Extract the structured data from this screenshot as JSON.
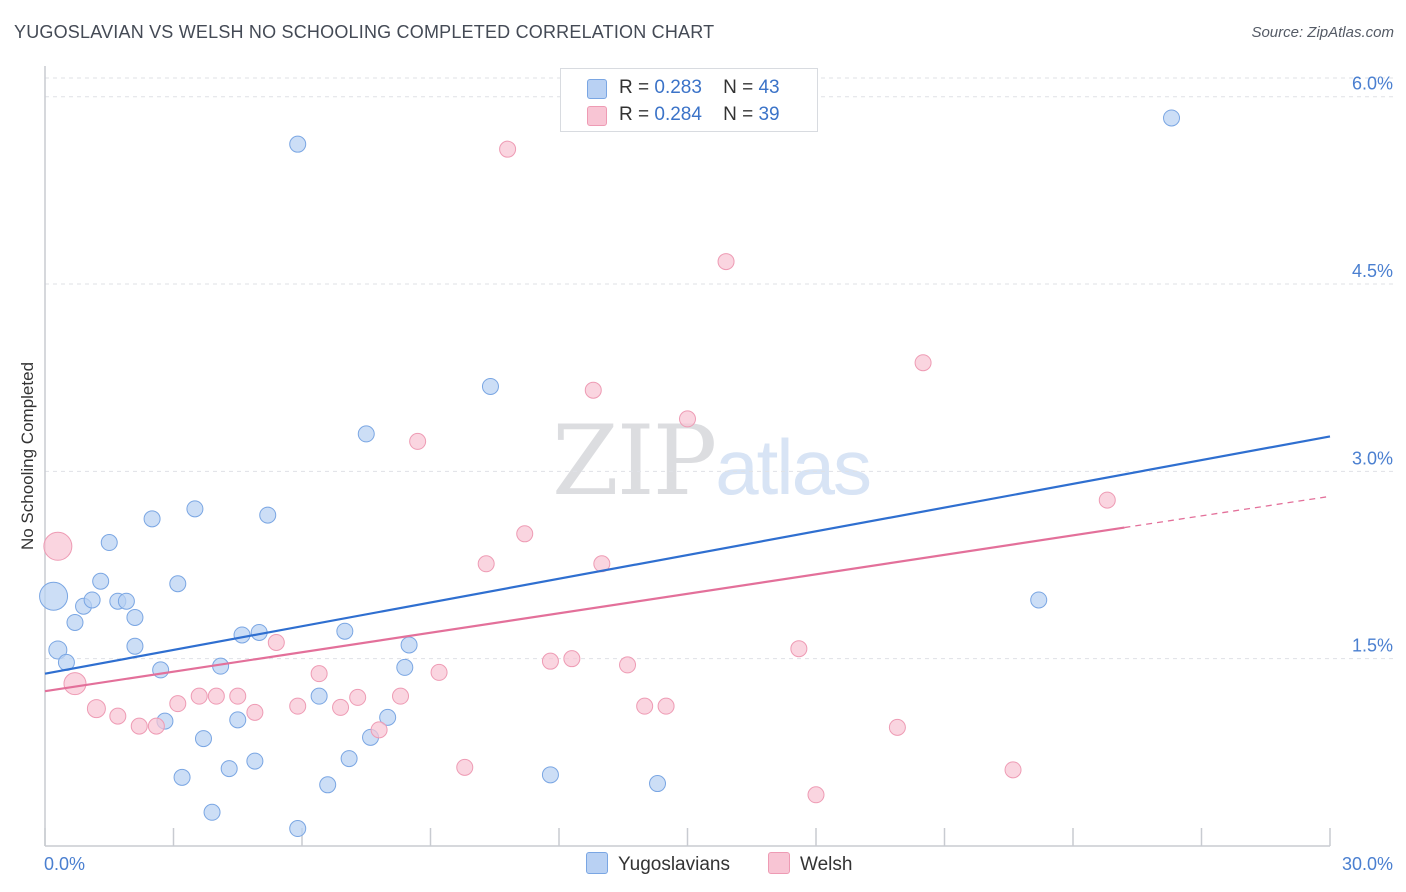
{
  "title": "YUGOSLAVIAN VS WELSH NO SCHOOLING COMPLETED CORRELATION CHART",
  "source": "Source: ZipAtlas.com",
  "watermark": {
    "zip": "ZIP",
    "atlas": "atlas"
  },
  "legend_top": [
    {
      "r_label": "R =",
      "r_value": "0.283",
      "n_label": "N =",
      "n_value": "43"
    },
    {
      "r_label": "R =",
      "r_value": "0.284",
      "n_label": "N =",
      "n_value": "39"
    }
  ],
  "legend_bottom": [
    "Yugoslavians",
    "Welsh"
  ],
  "colors": {
    "yugoslavian_fill": "#b9d1f3",
    "yugoslavian_stroke": "#7aa6e3",
    "yugoslavian_line": "#2f6fd0",
    "welsh_fill": "#f8c5d4",
    "welsh_stroke": "#ee9bb4",
    "welsh_line": "#e3709a",
    "grid": "#dfe1e6",
    "axis": "#c8cbd1"
  },
  "chart_data": {
    "type": "scatter",
    "title": "YUGOSLAVIAN VS WELSH NO SCHOOLING COMPLETED CORRELATION CHART",
    "xlabel": "",
    "ylabel": "No Schooling Completed",
    "xlim": [
      0,
      30
    ],
    "ylim": [
      0,
      6.15
    ],
    "x_tick_labels": [
      "0.0%",
      "30.0%"
    ],
    "y_ticks": [
      1.5,
      3.0,
      4.5,
      6.0
    ],
    "y_tick_labels": [
      "1.5%",
      "3.0%",
      "4.5%",
      "6.0%"
    ],
    "grid": true,
    "series": [
      {
        "name": "Yugoslavians",
        "r": 0.283,
        "n": 43,
        "trend": {
          "x0": 0,
          "y0": 1.38,
          "x1": 30,
          "y1": 3.28
        },
        "points": [
          [
            0.2,
            2.0,
            14
          ],
          [
            0.3,
            1.57,
            9
          ],
          [
            0.5,
            1.47,
            8
          ],
          [
            0.7,
            1.79,
            8
          ],
          [
            0.9,
            1.92,
            8
          ],
          [
            1.1,
            1.97,
            8
          ],
          [
            1.3,
            2.12,
            8
          ],
          [
            1.5,
            2.43,
            8
          ],
          [
            1.7,
            1.96,
            8
          ],
          [
            1.9,
            1.96,
            8
          ],
          [
            2.1,
            1.83,
            8
          ],
          [
            2.1,
            1.6,
            8
          ],
          [
            2.5,
            2.62,
            8
          ],
          [
            2.7,
            1.41,
            8
          ],
          [
            2.8,
            1.0,
            8
          ],
          [
            3.1,
            2.1,
            8
          ],
          [
            3.2,
            0.55,
            8
          ],
          [
            3.5,
            2.7,
            8
          ],
          [
            3.7,
            0.86,
            8
          ],
          [
            3.9,
            0.27,
            8
          ],
          [
            4.1,
            1.44,
            8
          ],
          [
            4.3,
            0.62,
            8
          ],
          [
            4.5,
            1.01,
            8
          ],
          [
            4.6,
            1.69,
            8
          ],
          [
            4.9,
            0.68,
            8
          ],
          [
            5.0,
            1.71,
            8
          ],
          [
            5.2,
            2.65,
            8
          ],
          [
            5.9,
            5.62,
            8
          ],
          [
            5.9,
            0.14,
            8
          ],
          [
            6.4,
            1.2,
            8
          ],
          [
            6.6,
            0.49,
            8
          ],
          [
            7.0,
            1.72,
            8
          ],
          [
            7.1,
            0.7,
            8
          ],
          [
            7.5,
            3.3,
            8
          ],
          [
            7.6,
            0.87,
            8
          ],
          [
            8.0,
            1.03,
            8
          ],
          [
            8.4,
            1.43,
            8
          ],
          [
            8.5,
            1.61,
            8
          ],
          [
            10.4,
            3.68,
            8
          ],
          [
            11.8,
            0.57,
            8
          ],
          [
            14.3,
            0.5,
            8
          ],
          [
            23.2,
            1.97,
            8
          ],
          [
            26.3,
            5.83,
            8
          ]
        ]
      },
      {
        "name": "Welsh",
        "r": 0.284,
        "n": 39,
        "trend": {
          "x0": 0,
          "y0": 1.24,
          "x1": 25.2,
          "y1": 2.55
        },
        "trend_dashed": {
          "x0": 25.2,
          "y0": 2.55,
          "x1": 30,
          "y1": 2.8
        },
        "points": [
          [
            0.3,
            2.4,
            14
          ],
          [
            0.7,
            1.3,
            11
          ],
          [
            1.2,
            1.1,
            9
          ],
          [
            1.7,
            1.04,
            8
          ],
          [
            2.2,
            0.96,
            8
          ],
          [
            2.6,
            0.96,
            8
          ],
          [
            3.1,
            1.14,
            8
          ],
          [
            3.6,
            1.2,
            8
          ],
          [
            4.0,
            1.2,
            8
          ],
          [
            4.5,
            1.2,
            8
          ],
          [
            4.9,
            1.07,
            8
          ],
          [
            5.4,
            1.63,
            8
          ],
          [
            5.9,
            1.12,
            8
          ],
          [
            6.4,
            1.38,
            8
          ],
          [
            6.9,
            1.11,
            8
          ],
          [
            7.3,
            1.19,
            8
          ],
          [
            7.8,
            0.93,
            8
          ],
          [
            8.3,
            1.2,
            8
          ],
          [
            8.7,
            3.24,
            8
          ],
          [
            9.2,
            1.39,
            8
          ],
          [
            9.8,
            0.63,
            8
          ],
          [
            10.3,
            2.26,
            8
          ],
          [
            10.8,
            5.58,
            8
          ],
          [
            11.2,
            2.5,
            8
          ],
          [
            11.8,
            1.48,
            8
          ],
          [
            12.3,
            1.5,
            8
          ],
          [
            12.8,
            3.65,
            8
          ],
          [
            13.0,
            2.26,
            8
          ],
          [
            13.6,
            1.45,
            8
          ],
          [
            14.0,
            1.12,
            8
          ],
          [
            14.5,
            1.12,
            8
          ],
          [
            15.0,
            3.42,
            8
          ],
          [
            15.9,
            4.68,
            8
          ],
          [
            17.6,
            1.58,
            8
          ],
          [
            18.0,
            0.41,
            8
          ],
          [
            19.9,
            0.95,
            8
          ],
          [
            20.5,
            3.87,
            8
          ],
          [
            22.6,
            0.61,
            8
          ],
          [
            24.8,
            2.77,
            8
          ]
        ]
      }
    ]
  }
}
